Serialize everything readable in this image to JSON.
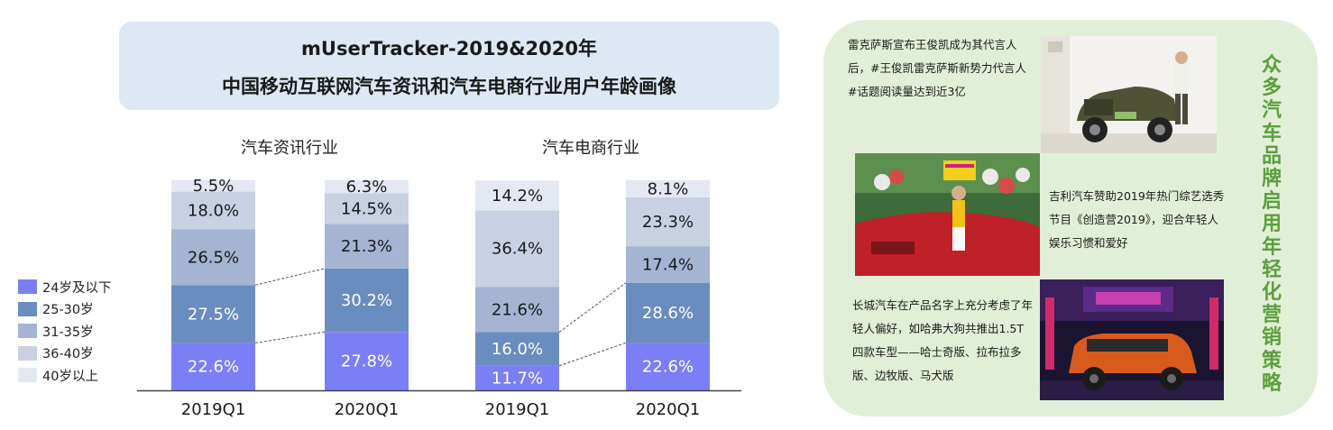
{
  "header": {
    "title_line1": "mUserTracker-2019&2020年",
    "title_line2": "中国移动互联网汽车资讯和汽车电商行业用户年龄画像"
  },
  "chart_data": {
    "type": "bar",
    "stacked": true,
    "percent": true,
    "groups": [
      {
        "name": "汽车资讯行业",
        "categories": [
          "2019Q1",
          "2020Q1"
        ]
      },
      {
        "name": "汽车电商行业",
        "categories": [
          "2019Q1",
          "2020Q1"
        ]
      }
    ],
    "categories": [
      "2019Q1",
      "2020Q1",
      "2019Q1",
      "2020Q1"
    ],
    "series": [
      {
        "name": "24岁及以下",
        "color": "#7b7ff5",
        "values": [
          22.6,
          27.8,
          11.7,
          22.6
        ],
        "labels": [
          "22.6%",
          "27.8%",
          "11.7%",
          "22.6%"
        ]
      },
      {
        "name": "25-30岁",
        "color": "#6a8dbf",
        "values": [
          27.5,
          30.2,
          16.0,
          28.6
        ],
        "labels": [
          "27.5%",
          "30.2%",
          "16.0%",
          "28.6%"
        ]
      },
      {
        "name": "31-35岁",
        "color": "#a4b4d2",
        "values": [
          26.5,
          21.3,
          21.6,
          17.4
        ],
        "labels": [
          "26.5%",
          "21.3%",
          "21.6%",
          "17.4%"
        ]
      },
      {
        "name": "36-40岁",
        "color": "#c8d0e2",
        "values": [
          18.0,
          14.5,
          36.4,
          23.3
        ],
        "labels": [
          "18.0%",
          "14.5%",
          "36.4%",
          "23.3%"
        ]
      },
      {
        "name": "40岁以上",
        "color": "#e4e8f2",
        "values": [
          5.5,
          6.3,
          14.2,
          8.1
        ],
        "labels": [
          "5.5%",
          "6.3%",
          "14.2%",
          "8.1%"
        ]
      }
    ],
    "ylim": [
      0,
      100
    ],
    "grid": false,
    "legend_position": "left",
    "label_colors": {
      "light": "#1a1a1a",
      "dark": "#ffffff"
    }
  },
  "side_panel": {
    "title": "众多汽车品牌启用年轻化营销策略",
    "items": [
      {
        "text": "雷克萨斯宣布王俊凯成为其代言人后，#王俊凯雷克萨斯新势力代言人#话题阅读量达到近3亿",
        "image": "lexus-suv-photo"
      },
      {
        "text": "吉利汽车赞助2019年热门综艺选秀节目《创造营2019》，迎合年轻人娱乐习惯和爱好",
        "image": "geely-sedan-photo"
      },
      {
        "text": "长城汽车在产品名字上充分考虑了年轻人偏好，如哈弗大狗共推出1.5T四款车型——哈士奇版、拉布拉多版、边牧版、马犬版",
        "image": "haval-dog-photo"
      }
    ],
    "colors": {
      "panel": "#e2efd8",
      "title": "#5aa03c"
    }
  }
}
